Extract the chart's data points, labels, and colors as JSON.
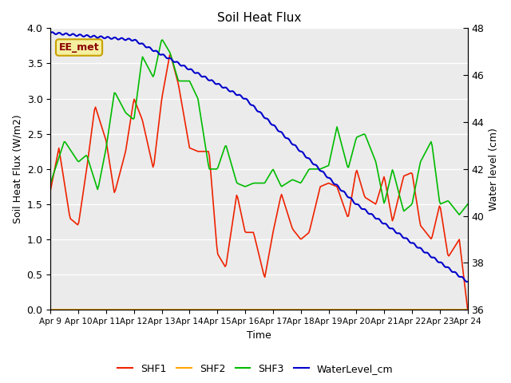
{
  "title": "Soil Heat Flux",
  "ylabel_left": "Soil Heat Flux (W/m2)",
  "ylabel_right": "Water level (cm)",
  "xlabel": "Time",
  "xlim": [
    0,
    15
  ],
  "ylim_left": [
    0.0,
    4.0
  ],
  "ylim_right": [
    36,
    48
  ],
  "fig_bg": "#ffffff",
  "plot_bg": "#ebebeb",
  "annotation_text": "EE_met",
  "annotation_bg": "#f5f0a0",
  "annotation_border": "#c8a000",
  "annotation_text_color": "#8b0000",
  "shf1_color": "#ee2200",
  "shf2_color": "#ffa500",
  "shf3_color": "#00bb00",
  "water_color": "#0000cc",
  "grid_color": "#ffffff",
  "xtick_labels": [
    "Apr 9",
    "Apr 10",
    "Apr 11",
    "Apr 12",
    "Apr 13",
    "Apr 14",
    "Apr 15",
    "Apr 16",
    "Apr 17",
    "Apr 18",
    "Apr 19",
    "Apr 20",
    "Apr 21",
    "Apr 22",
    "Apr 23",
    "Apr 24"
  ],
  "yticks_left": [
    0.0,
    0.5,
    1.0,
    1.5,
    2.0,
    2.5,
    3.0,
    3.5,
    4.0
  ],
  "yticks_right": [
    36,
    38,
    40,
    42,
    44,
    46,
    48
  ],
  "shf1_x": [
    0,
    0.3,
    0.7,
    1.0,
    1.3,
    1.6,
    2.0,
    2.3,
    2.7,
    3.0,
    3.3,
    3.7,
    4.0,
    4.3,
    4.6,
    5.0,
    5.3,
    5.7,
    6.0,
    6.3,
    6.7,
    7.0,
    7.3,
    7.7,
    8.0,
    8.3,
    8.7,
    9.0,
    9.3,
    9.7,
    10.0,
    10.3,
    10.7,
    11.0,
    11.3,
    11.7,
    12.0,
    12.3,
    12.7,
    13.0,
    13.3,
    13.7,
    14.0,
    14.3,
    14.7,
    15.0
  ],
  "shf1_y": [
    1.7,
    2.3,
    1.3,
    1.2,
    2.0,
    2.9,
    2.4,
    1.65,
    2.25,
    3.0,
    2.7,
    2.0,
    3.0,
    3.65,
    3.2,
    2.3,
    2.25,
    2.25,
    0.8,
    0.6,
    1.65,
    1.1,
    1.1,
    0.45,
    1.1,
    1.65,
    1.15,
    1.0,
    1.1,
    1.75,
    1.8,
    1.75,
    1.3,
    2.0,
    1.6,
    1.5,
    1.9,
    1.25,
    1.9,
    1.95,
    1.2,
    1.0,
    1.5,
    0.75,
    1.0,
    0.0
  ],
  "shf3_x": [
    0,
    0.5,
    1.0,
    1.3,
    1.7,
    2.0,
    2.3,
    2.7,
    3.0,
    3.3,
    3.7,
    4.0,
    4.3,
    4.6,
    5.0,
    5.3,
    5.7,
    6.0,
    6.3,
    6.7,
    7.0,
    7.3,
    7.7,
    8.0,
    8.3,
    8.7,
    9.0,
    9.3,
    9.7,
    10.0,
    10.3,
    10.7,
    11.0,
    11.3,
    11.7,
    12.0,
    12.3,
    12.7,
    13.0,
    13.3,
    13.7,
    14.0,
    14.3,
    14.7,
    15.0
  ],
  "shf3_y": [
    1.8,
    2.4,
    2.1,
    2.2,
    1.7,
    2.3,
    3.1,
    2.8,
    2.7,
    3.6,
    3.3,
    3.85,
    3.65,
    3.25,
    3.25,
    3.0,
    2.0,
    2.0,
    2.35,
    1.8,
    1.75,
    1.8,
    1.8,
    2.0,
    1.75,
    1.85,
    1.8,
    2.0,
    2.0,
    2.05,
    2.6,
    2.0,
    2.45,
    2.5,
    2.1,
    1.5,
    2.0,
    1.4,
    1.5,
    2.1,
    2.4,
    1.5,
    1.55,
    1.35,
    1.5
  ],
  "water_kx": [
    0,
    3,
    7,
    11,
    15
  ],
  "water_ky": [
    47.8,
    47.5,
    45.0,
    40.5,
    37.2
  ]
}
